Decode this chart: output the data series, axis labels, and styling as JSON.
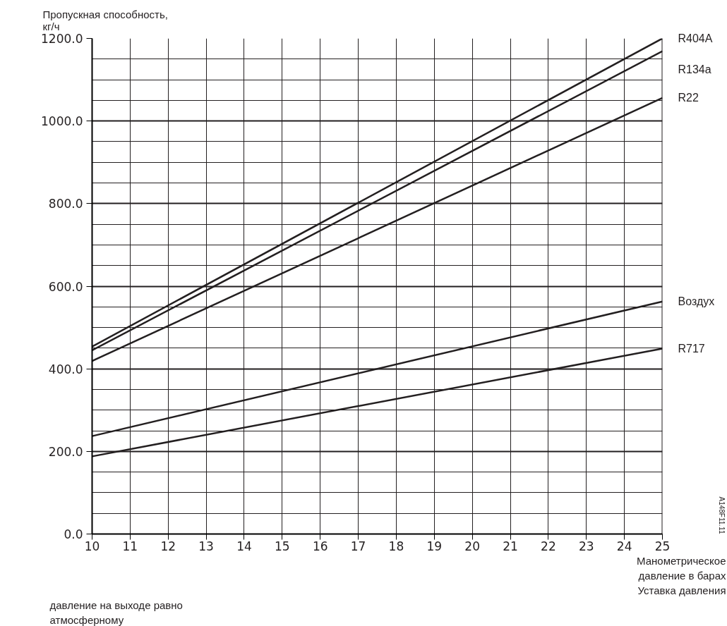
{
  "chart_data": {
    "type": "line",
    "ylabel": "Пропускная способность, кг/ч",
    "xlabel": "Манометрическое давление в барах",
    "annotations": [
      "Уставка давления",
      "давление на выходе равно атмосферному",
      "A148F11.11"
    ],
    "x": [
      10,
      25
    ],
    "series": [
      {
        "name": "R404A",
        "color": "#231f20",
        "values": [
          454,
          1200
        ]
      },
      {
        "name": "R134a",
        "color": "#231f20",
        "values": [
          445,
          1169
        ]
      },
      {
        "name": "R22",
        "color": "#231f20",
        "values": [
          419,
          1056
        ]
      },
      {
        "name": "Воздух",
        "color": "#231f20",
        "values": [
          237,
          563
        ]
      },
      {
        "name": "R717",
        "color": "#231f20",
        "values": [
          188,
          449
        ]
      }
    ],
    "xlim": [
      10,
      25
    ],
    "ylim": [
      0,
      1200
    ],
    "xticks": [
      10,
      11,
      12,
      13,
      14,
      15,
      16,
      17,
      18,
      19,
      20,
      21,
      22,
      23,
      24,
      25
    ],
    "yticks": [
      {
        "value": 0,
        "label": "0.0"
      },
      {
        "value": 200,
        "label": "200.0"
      },
      {
        "value": 400,
        "label": "400.0"
      },
      {
        "value": 600,
        "label": "600.0"
      },
      {
        "value": 800,
        "label": "800.0"
      },
      {
        "value": 1000,
        "label": "1000.0"
      },
      {
        "value": 1200,
        "label": "1200.0"
      }
    ],
    "grid": true,
    "legend": false,
    "line_style": "solid",
    "marker": "none"
  }
}
